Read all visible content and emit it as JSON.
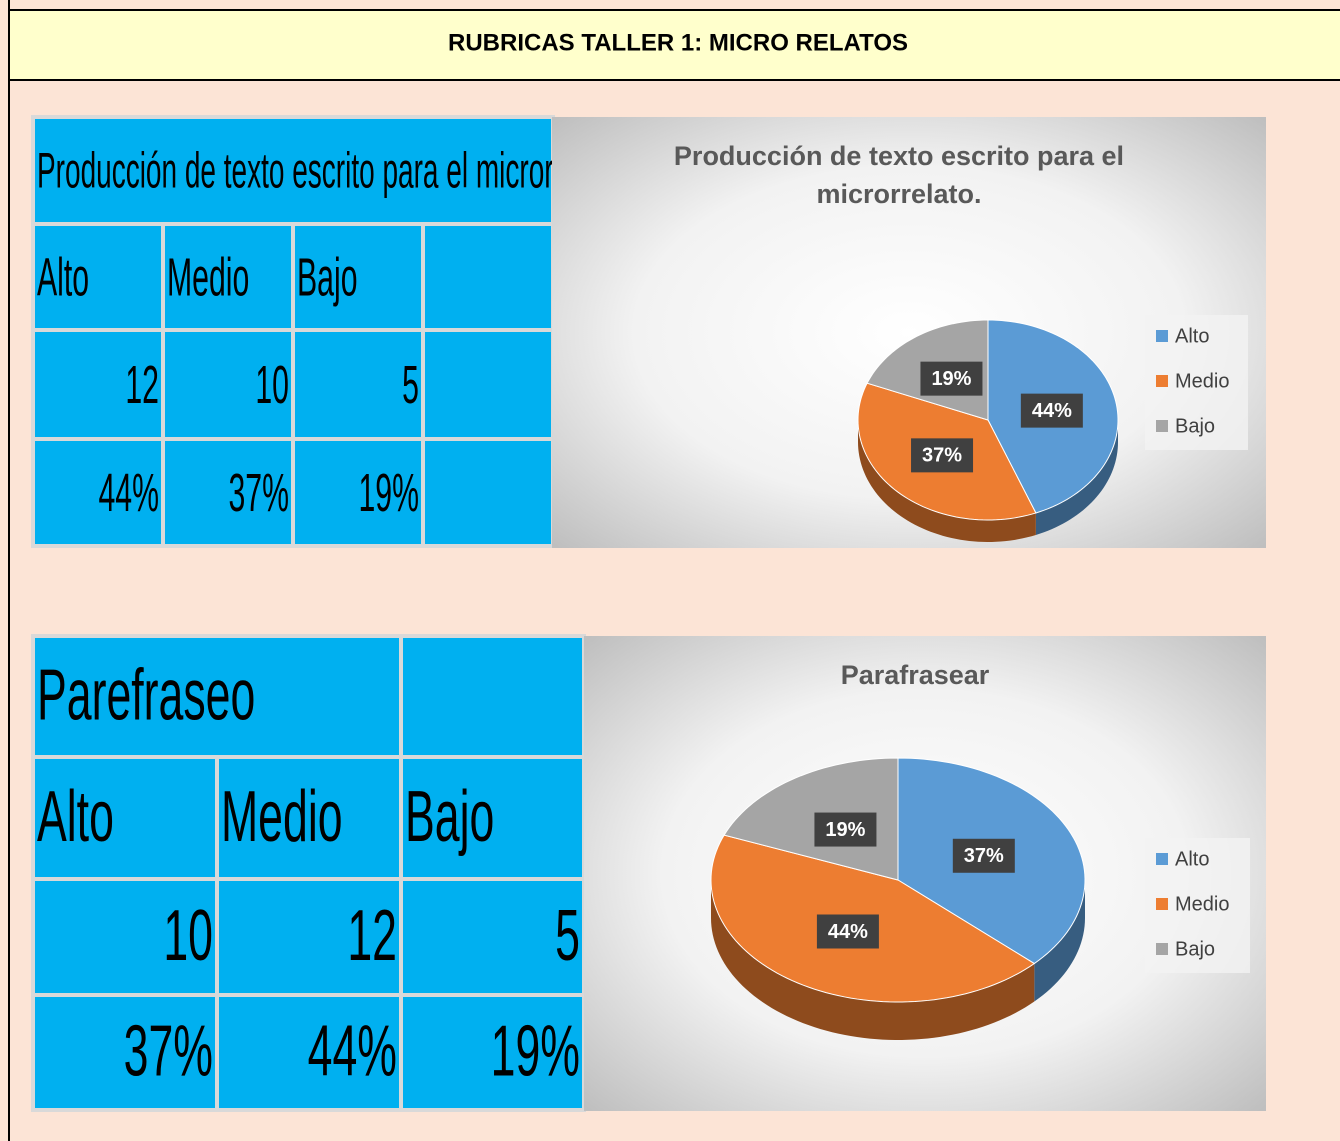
{
  "header": {
    "title": "RUBRICAS TALLER 1: MICRO RELATOS"
  },
  "sections": [
    {
      "table": {
        "title": "Producción de texto escrito para el microrrelato.",
        "rows": [
          [
            "Alto",
            "Medio",
            "Bajo"
          ],
          [
            12,
            10,
            5
          ],
          [
            "44%",
            "37%",
            "19%"
          ]
        ]
      },
      "chart": {
        "type": "pie",
        "title": [
          "Producción de texto escrito para el",
          "microrrelato."
        ],
        "categories": [
          "Alto",
          "Medio",
          "Bajo"
        ],
        "values": [
          44,
          37,
          19
        ],
        "value_labels": [
          "44%",
          "37%",
          "19%"
        ],
        "colors": [
          "#5b9bd5",
          "#ed7d31",
          "#a5a5a5"
        ],
        "legend": "right"
      }
    },
    {
      "table": {
        "title": "Parefraseo",
        "rows": [
          [
            "Alto",
            "Medio",
            "Bajo"
          ],
          [
            10,
            12,
            5
          ],
          [
            "37%",
            "44%",
            "19%"
          ]
        ]
      },
      "chart": {
        "type": "pie",
        "title": [
          "Parafrasear"
        ],
        "categories": [
          "Alto",
          "Medio",
          "Bajo"
        ],
        "values": [
          37,
          44,
          19
        ],
        "value_labels": [
          "37%",
          "44%",
          "19%"
        ],
        "colors": [
          "#5b9bd5",
          "#ed7d31",
          "#a5a5a5"
        ],
        "legend": "right"
      }
    }
  ]
}
